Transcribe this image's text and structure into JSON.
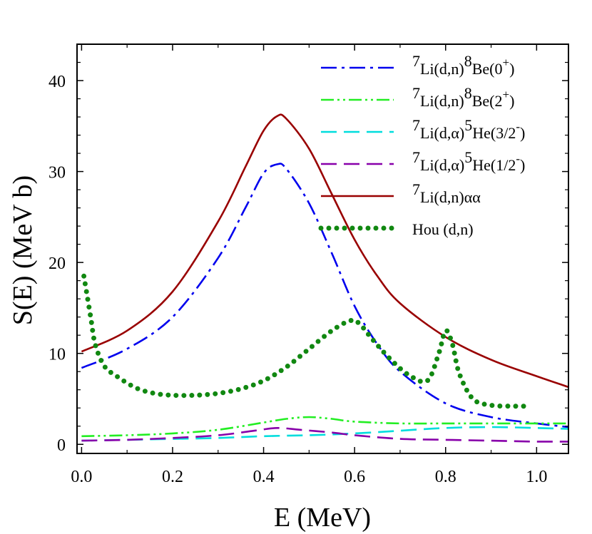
{
  "chart_data": {
    "type": "line",
    "title": "",
    "xlabel": "E (MeV)",
    "ylabel": "S(E) (MeV b)",
    "xlim": [
      -0.01,
      1.07
    ],
    "ylim": [
      -1,
      44
    ],
    "x_ticks": [
      "0.0",
      "0.2",
      "0.4",
      "0.6",
      "0.8",
      "1.0"
    ],
    "x_tick_values": [
      0.0,
      0.2,
      0.4,
      0.6,
      0.8,
      1.0
    ],
    "y_ticks": [
      "0",
      "10",
      "20",
      "30",
      "40"
    ],
    "y_tick_values": [
      0,
      10,
      20,
      30,
      40
    ],
    "grid": false,
    "legend_position": "top-right",
    "series": [
      {
        "name": "Li(d,n)Be(0+)",
        "legend": {
          "pre": "7",
          "a": "Li(d,n)",
          "sup": "8",
          "b": "Be(0",
          "sup2": "+",
          "c": ")"
        },
        "color": "#0000ee",
        "style": "dashdot",
        "x": [
          0.0,
          0.1,
          0.2,
          0.3,
          0.36,
          0.4,
          0.43,
          0.45,
          0.5,
          0.55,
          0.6,
          0.65,
          0.7,
          0.8,
          0.9,
          1.0,
          1.07
        ],
        "y": [
          8.4,
          10.5,
          14.0,
          20.5,
          26.0,
          29.8,
          30.8,
          30.3,
          26.5,
          21.0,
          15.2,
          11.0,
          8.0,
          4.5,
          3.0,
          2.3,
          1.9
        ]
      },
      {
        "name": "Li(d,n)Be(2+)",
        "legend": {
          "pre": "7",
          "a": "Li(d,n)",
          "sup": "8",
          "b": "Be(2",
          "sup2": "+",
          "c": ")"
        },
        "color": "#22ee22",
        "style": "dashdotdot",
        "x": [
          0.0,
          0.1,
          0.2,
          0.3,
          0.4,
          0.45,
          0.5,
          0.55,
          0.6,
          0.7,
          0.8,
          0.9,
          1.0,
          1.07
        ],
        "y": [
          0.9,
          1.0,
          1.2,
          1.6,
          2.4,
          2.8,
          3.0,
          2.8,
          2.5,
          2.3,
          2.3,
          2.3,
          2.3,
          2.3
        ]
      },
      {
        "name": "Li(d,alpha)He(3/2-)",
        "legend": {
          "pre": "7",
          "a": "Li(d,α)",
          "sup": "5",
          "b": "He(3/2",
          "sup2": "-",
          "c": ")"
        },
        "color": "#00dddd",
        "style": "dash",
        "x": [
          0.0,
          0.1,
          0.2,
          0.3,
          0.4,
          0.5,
          0.6,
          0.7,
          0.8,
          0.9,
          1.0,
          1.07
        ],
        "y": [
          0.4,
          0.5,
          0.6,
          0.7,
          0.9,
          1.0,
          1.2,
          1.5,
          1.8,
          1.9,
          1.8,
          1.7
        ]
      },
      {
        "name": "Li(d,alpha)He(1/2-)",
        "legend": {
          "pre": "7",
          "a": "Li(d,α)",
          "sup": "5",
          "b": "He(1/2",
          "sup2": "-",
          "c": ")"
        },
        "color": "#8800aa",
        "style": "dash",
        "x": [
          0.0,
          0.1,
          0.2,
          0.3,
          0.38,
          0.43,
          0.48,
          0.55,
          0.6,
          0.7,
          0.8,
          0.9,
          1.0,
          1.07
        ],
        "y": [
          0.4,
          0.5,
          0.7,
          1.0,
          1.5,
          1.8,
          1.6,
          1.3,
          1.0,
          0.6,
          0.5,
          0.4,
          0.3,
          0.3
        ]
      },
      {
        "name": "Li(d,n)alpha alpha",
        "legend": {
          "pre": "7",
          "a": "Li(d,n)αα",
          "sup": "",
          "b": "",
          "sup2": "",
          "c": ""
        },
        "color": "#990000",
        "style": "solid",
        "x": [
          0.0,
          0.1,
          0.2,
          0.3,
          0.36,
          0.4,
          0.43,
          0.45,
          0.5,
          0.55,
          0.6,
          0.65,
          0.7,
          0.8,
          0.9,
          1.0,
          1.07
        ],
        "y": [
          10.2,
          12.5,
          16.8,
          24.5,
          30.5,
          34.5,
          36.1,
          35.8,
          32.5,
          27.5,
          22.5,
          18.5,
          15.5,
          11.8,
          9.3,
          7.5,
          6.3
        ]
      },
      {
        "name": "Hou (d,n)",
        "legend": {
          "pre": "",
          "a": "Hou (d,n)",
          "sup": "",
          "b": "",
          "sup2": "",
          "c": ""
        },
        "color": "#118811",
        "style": "dotted",
        "x": [
          0.005,
          0.01,
          0.02,
          0.03,
          0.05,
          0.08,
          0.12,
          0.16,
          0.2,
          0.25,
          0.3,
          0.35,
          0.4,
          0.45,
          0.5,
          0.55,
          0.59,
          0.61,
          0.64,
          0.68,
          0.72,
          0.76,
          0.785,
          0.8,
          0.815,
          0.83,
          0.86,
          0.9,
          0.95,
          0.98
        ],
        "y": [
          18.5,
          17.0,
          14.0,
          11.0,
          8.6,
          7.4,
          6.2,
          5.6,
          5.4,
          5.4,
          5.6,
          6.1,
          7.0,
          8.5,
          10.5,
          12.5,
          13.6,
          13.3,
          11.5,
          9.3,
          7.6,
          7.0,
          10.0,
          12.5,
          11.0,
          7.8,
          5.0,
          4.3,
          4.2,
          4.2
        ]
      }
    ]
  }
}
